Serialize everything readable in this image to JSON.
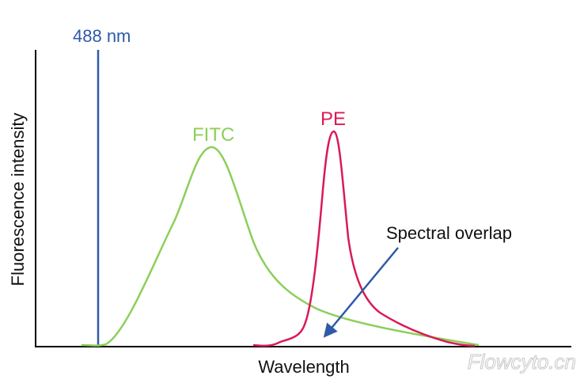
{
  "labels": {
    "excitation": "488 nm",
    "fitc": "FITC",
    "pe": "PE",
    "overlap": "Spectral overlap",
    "x_axis": "Wavelength",
    "y_axis": "Fluorescence intensity",
    "watermark": "Flowcyto.cn"
  },
  "colors": {
    "excitation": "#2e5aa7",
    "fitc": "#8ccf5a",
    "pe": "#d81b55",
    "arrow": "#2e5aa7",
    "axis": "#000000",
    "text": "#111111"
  }
}
